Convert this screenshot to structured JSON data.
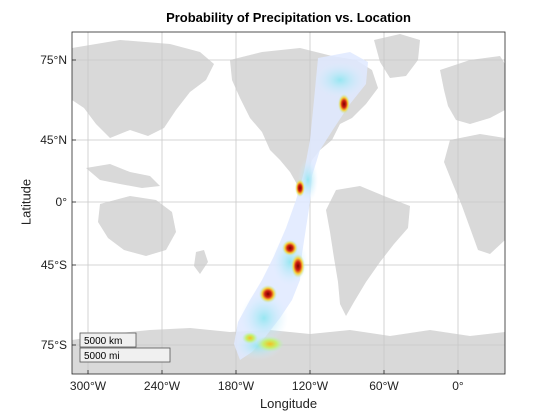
{
  "title": "Probability of Precipitation vs. Location",
  "xlabel": "Longitude",
  "ylabel": "Latitude",
  "x_ticks": [
    "300°W",
    "240°W",
    "180°W",
    "150°W",
    "120°W",
    "60°W",
    "0°"
  ],
  "y_ticks": [
    "75°N",
    "45°N",
    "0°",
    "45°S",
    "75°S"
  ],
  "scale_bar": {
    "km_label": "5000 km",
    "mi_label": "5000 mi"
  },
  "colors": {
    "land": "#d9d9d9",
    "ocean": "#ffffff",
    "grid": "#c8c8c8",
    "high": "#8b0000"
  },
  "chart_data": {
    "type": "heatmap",
    "projection": "mercator",
    "xlabel": "Longitude",
    "ylabel": "Latitude",
    "xlim": [
      "310°W",
      "50°E"
    ],
    "ylim": [
      "82°S",
      "85°N"
    ],
    "grid": true,
    "track": "band of precipitation probability from Hudson Bay / Labrador through the eastern Pacific to the Antarctic coast",
    "hotspots": [
      {
        "lon": -95,
        "lat": 8,
        "level": "high"
      },
      {
        "lon": -100,
        "lat": -35,
        "level": "high"
      },
      {
        "lon": -95,
        "lat": -48,
        "level": "high"
      },
      {
        "lon": -118,
        "lat": -62,
        "level": "high"
      },
      {
        "lon": -108,
        "lat": -76,
        "level": "medium"
      },
      {
        "lon": -60,
        "lat": 62,
        "level": "medium"
      }
    ]
  }
}
